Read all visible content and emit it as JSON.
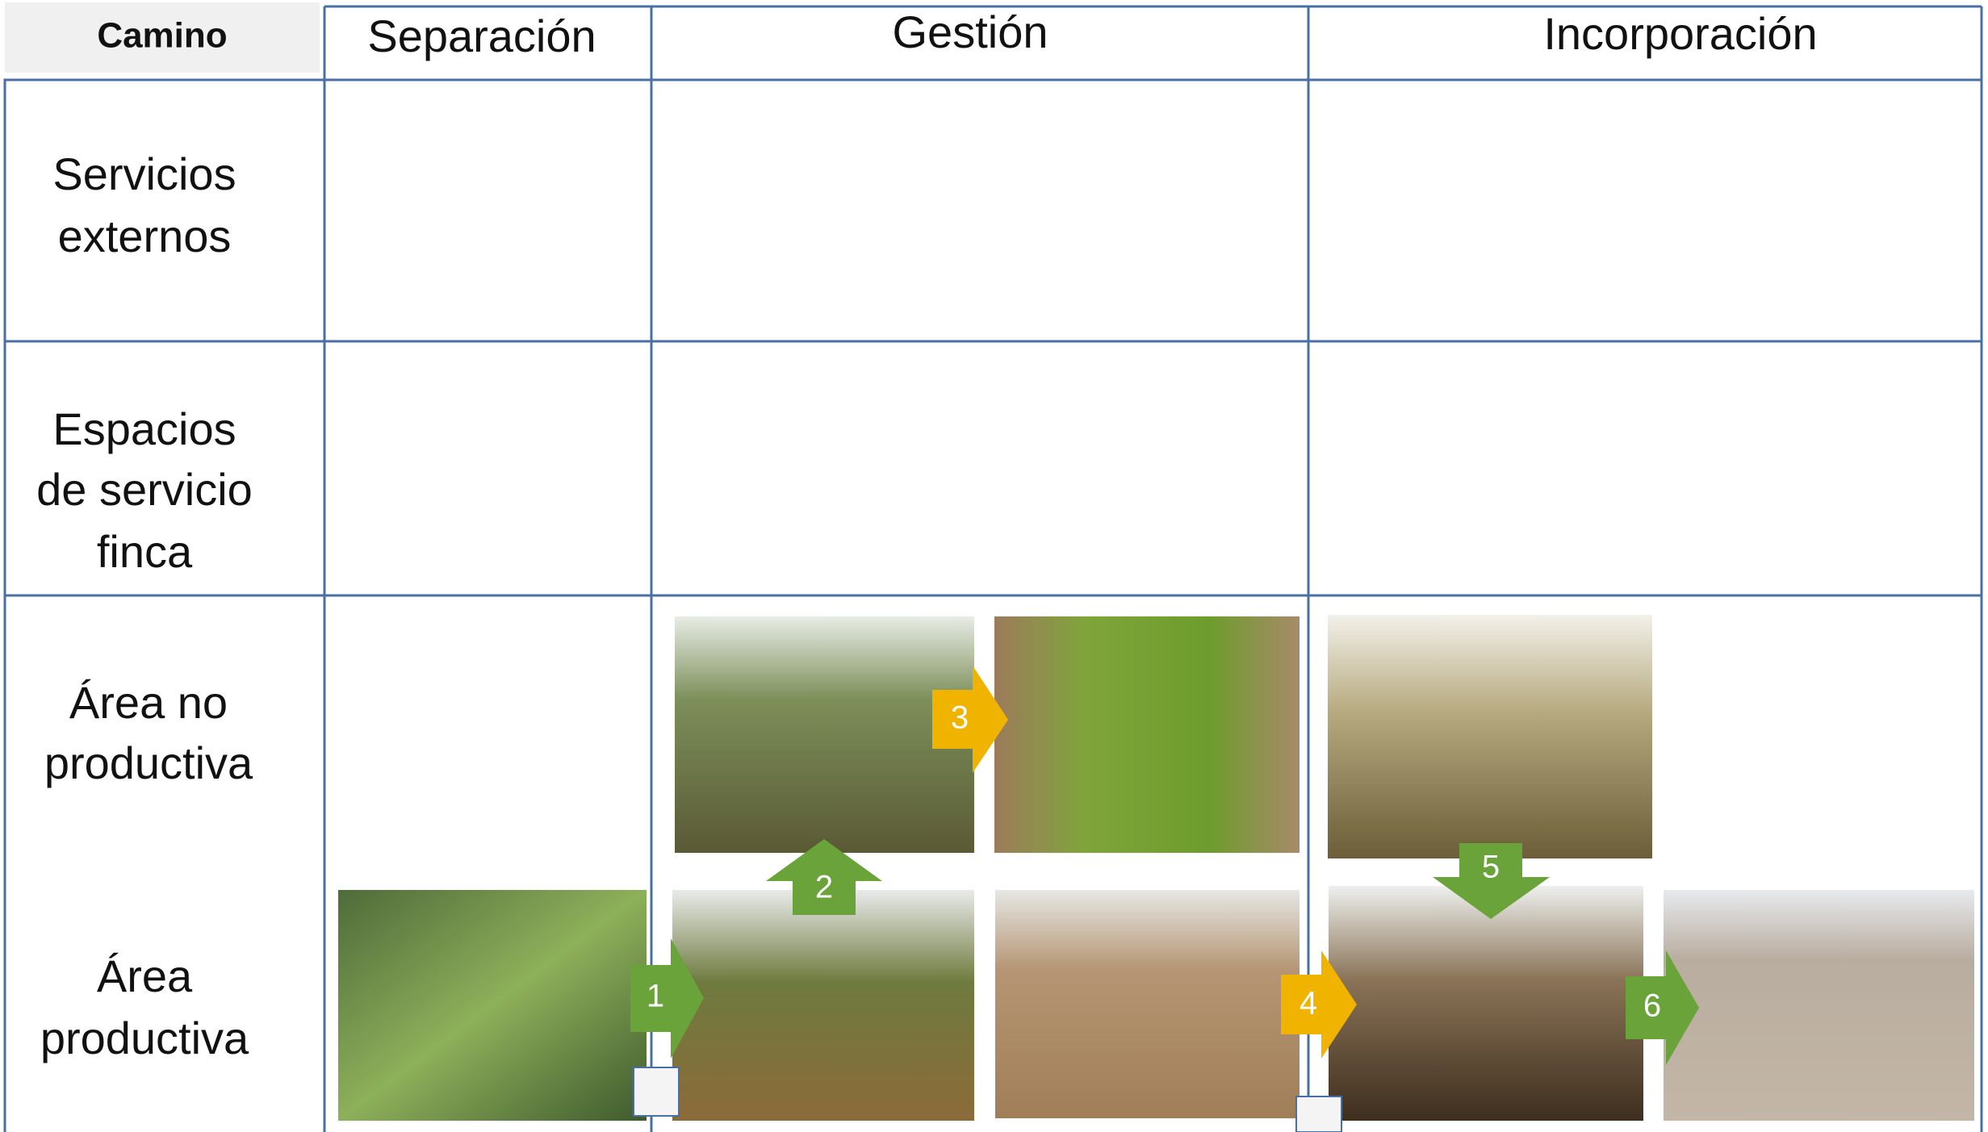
{
  "header": {
    "corner": "Camino",
    "columns": [
      "Separación",
      "Gestión",
      "Incorporación"
    ]
  },
  "rows": [
    {
      "lines": [
        "Servicios",
        "externos"
      ]
    },
    {
      "lines": [
        "Espacios",
        "de servicio",
        "finca"
      ]
    },
    {
      "lines": [
        "Área no",
        "productiva"
      ]
    },
    {
      "lines": [
        "Área",
        "productiva"
      ]
    }
  ],
  "steps": [
    "1",
    "2",
    "3",
    "4",
    "5",
    "6"
  ]
}
